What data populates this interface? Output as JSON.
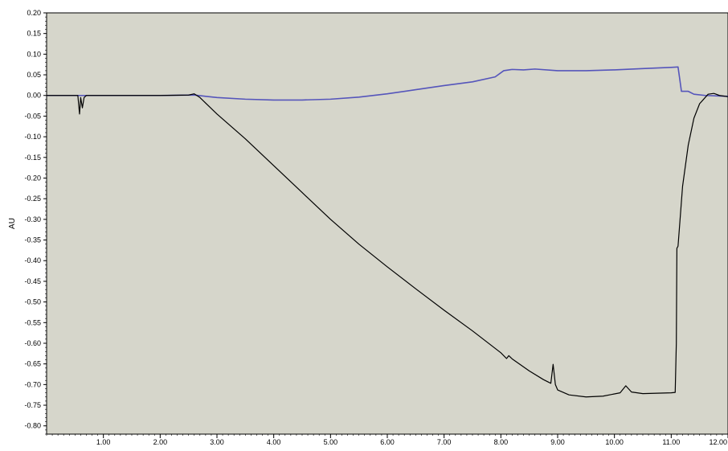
{
  "chart_data": {
    "type": "line",
    "title": "",
    "xlabel": "",
    "ylabel": "AU",
    "xlim": [
      0.0,
      12.0
    ],
    "ylim": [
      -0.82,
      0.2
    ],
    "x_ticks": [
      1.0,
      2.0,
      3.0,
      4.0,
      5.0,
      6.0,
      7.0,
      8.0,
      9.0,
      10.0,
      11.0,
      12.0
    ],
    "x_tick_labels": [
      "1.00",
      "2.00",
      "3.00",
      "4.00",
      "5.00",
      "6.00",
      "7.00",
      "8.00",
      "9.00",
      "10.00",
      "11.00",
      "12.00"
    ],
    "y_ticks": [
      0.2,
      0.15,
      0.1,
      0.05,
      0.0,
      -0.05,
      -0.1,
      -0.15,
      -0.2,
      -0.25,
      -0.3,
      -0.35,
      -0.4,
      -0.45,
      -0.5,
      -0.55,
      -0.6,
      -0.65,
      -0.7,
      -0.75,
      -0.8
    ],
    "y_tick_labels": [
      "0.20",
      "0.15",
      "0.10",
      "0.05",
      "0.00",
      "-0.05",
      "-0.10",
      "-0.15",
      "-0.20",
      "-0.25",
      "-0.30",
      "-0.35",
      "-0.40",
      "-0.45",
      "-0.50",
      "-0.55",
      "-0.60",
      "-0.65",
      "-0.70",
      "-0.75",
      "-0.80"
    ],
    "grid": false,
    "legend": "none",
    "series": [
      {
        "color": "#5555bb",
        "points": [
          [
            0.0,
            0.0
          ],
          [
            1.0,
            0.0
          ],
          [
            2.0,
            0.0
          ],
          [
            2.6,
            0.001
          ],
          [
            2.8,
            -0.002
          ],
          [
            3.0,
            -0.005
          ],
          [
            3.5,
            -0.009
          ],
          [
            4.0,
            -0.011
          ],
          [
            4.5,
            -0.011
          ],
          [
            5.0,
            -0.009
          ],
          [
            5.5,
            -0.004
          ],
          [
            6.0,
            0.004
          ],
          [
            6.5,
            0.014
          ],
          [
            7.0,
            0.024
          ],
          [
            7.5,
            0.033
          ],
          [
            7.9,
            0.045
          ],
          [
            8.05,
            0.06
          ],
          [
            8.2,
            0.063
          ],
          [
            8.4,
            0.062
          ],
          [
            8.6,
            0.064
          ],
          [
            9.0,
            0.06
          ],
          [
            9.5,
            0.06
          ],
          [
            10.0,
            0.062
          ],
          [
            10.5,
            0.065
          ],
          [
            11.0,
            0.068
          ],
          [
            11.12,
            0.069
          ],
          [
            11.15,
            0.04
          ],
          [
            11.18,
            0.01
          ],
          [
            11.3,
            0.01
          ],
          [
            11.4,
            0.003
          ],
          [
            11.6,
            0.0
          ],
          [
            12.0,
            -0.002
          ]
        ]
      },
      {
        "color": "#000000",
        "points": [
          [
            0.0,
            0.0
          ],
          [
            0.55,
            0.0
          ],
          [
            0.58,
            -0.045
          ],
          [
            0.6,
            -0.005
          ],
          [
            0.63,
            -0.03
          ],
          [
            0.66,
            -0.005
          ],
          [
            0.7,
            0.0
          ],
          [
            1.0,
            0.0
          ],
          [
            2.0,
            0.0
          ],
          [
            2.5,
            0.001
          ],
          [
            2.6,
            0.004
          ],
          [
            2.7,
            -0.005
          ],
          [
            2.85,
            -0.025
          ],
          [
            3.0,
            -0.045
          ],
          [
            3.5,
            -0.105
          ],
          [
            4.0,
            -0.17
          ],
          [
            4.5,
            -0.235
          ],
          [
            5.0,
            -0.3
          ],
          [
            5.5,
            -0.36
          ],
          [
            6.0,
            -0.415
          ],
          [
            6.5,
            -0.468
          ],
          [
            7.0,
            -0.52
          ],
          [
            7.5,
            -0.57
          ],
          [
            8.0,
            -0.623
          ],
          [
            8.1,
            -0.637
          ],
          [
            8.14,
            -0.63
          ],
          [
            8.2,
            -0.638
          ],
          [
            8.5,
            -0.667
          ],
          [
            8.75,
            -0.688
          ],
          [
            8.88,
            -0.697
          ],
          [
            8.92,
            -0.651
          ],
          [
            8.96,
            -0.7
          ],
          [
            9.0,
            -0.713
          ],
          [
            9.2,
            -0.725
          ],
          [
            9.5,
            -0.73
          ],
          [
            9.8,
            -0.728
          ],
          [
            10.1,
            -0.72
          ],
          [
            10.2,
            -0.703
          ],
          [
            10.3,
            -0.718
          ],
          [
            10.5,
            -0.722
          ],
          [
            11.0,
            -0.72
          ],
          [
            11.07,
            -0.719
          ],
          [
            11.09,
            -0.6
          ],
          [
            11.1,
            -0.37
          ],
          [
            11.12,
            -0.365
          ],
          [
            11.2,
            -0.22
          ],
          [
            11.3,
            -0.12
          ],
          [
            11.4,
            -0.055
          ],
          [
            11.5,
            -0.02
          ],
          [
            11.65,
            0.003
          ],
          [
            11.75,
            0.005
          ],
          [
            11.85,
            0.0
          ],
          [
            12.0,
            -0.003
          ]
        ]
      }
    ]
  }
}
